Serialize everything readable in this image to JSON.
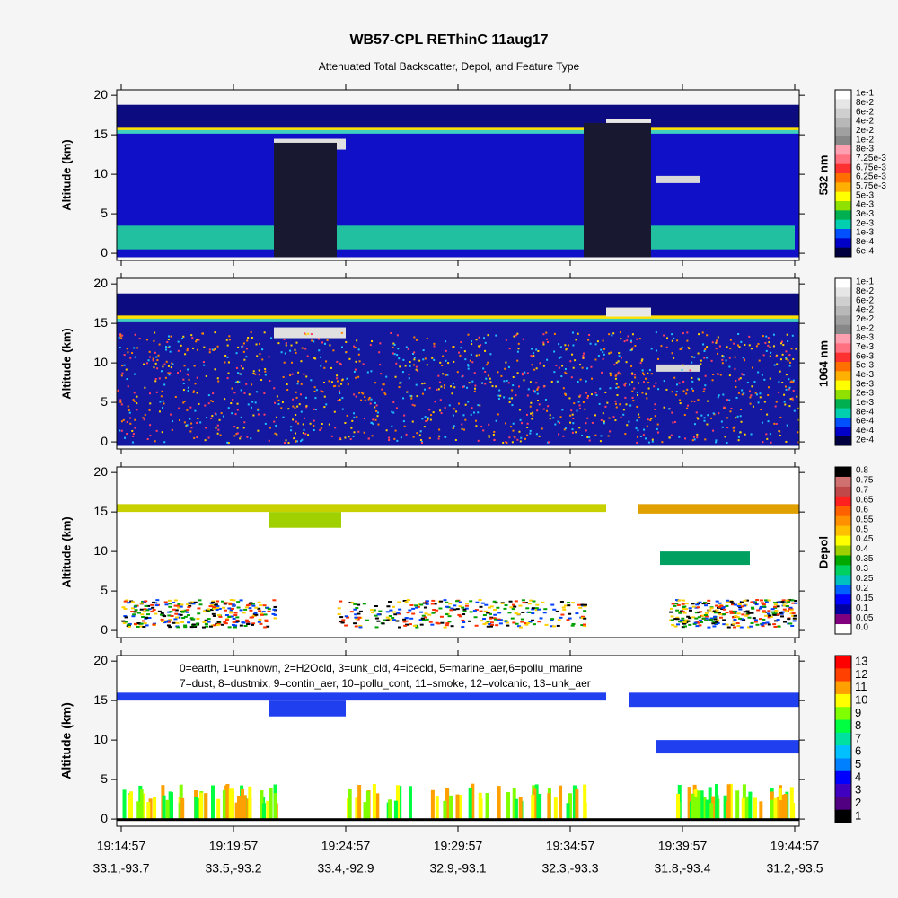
{
  "title": "WB57-CPL REThinC 11aug17",
  "subtitle": "Attenuated Total Backscatter, Depol, and Feature Type",
  "x_categories": [
    "19:14:57",
    "19:19:57",
    "19:24:57",
    "19:29:57",
    "19:34:57",
    "19:39:57",
    "19:44:57"
  ],
  "x_positions": [
    "33.1,-93.7",
    "33.5,-93.2",
    "33.4,-92.9",
    "32.9,-93.1",
    "32.3,-93.3",
    "31.8,-93.4",
    "31.2,-93.5"
  ],
  "chart_data": [
    {
      "type": "heatmap",
      "ylabel": "Altitude (km)",
      "ylim": [
        -0.9,
        20.7
      ],
      "yticks": [
        0,
        5,
        10,
        15,
        20
      ],
      "colorbar": {
        "label": "532 nm",
        "levels": [
          "1e-1",
          "8e-2",
          "6e-2",
          "4e-2",
          "2e-2",
          "1e-2",
          "8e-3",
          "7.25e-3",
          "6.75e-3",
          "6.25e-3",
          "5.75e-3",
          "5e-3",
          "4e-3",
          "3e-3",
          "2e-3",
          "1e-3",
          "8e-4",
          "6e-4"
        ],
        "colors": [
          "#ffffff",
          "#e6e6e6",
          "#cfcfcf",
          "#b8b8b8",
          "#a0a0a0",
          "#888888",
          "#ffa0b0",
          "#ff7080",
          "#ff3030",
          "#ff7000",
          "#ffb000",
          "#ffff00",
          "#90e000",
          "#00b050",
          "#00d0b0",
          "#0050ff",
          "#0000c8",
          "#000040"
        ]
      }
    },
    {
      "type": "heatmap",
      "ylabel": "Altitude (km)",
      "ylim": [
        -0.9,
        20.7
      ],
      "yticks": [
        0,
        5,
        10,
        15,
        20
      ],
      "colorbar": {
        "label": "1064 nm",
        "levels": [
          "1e-1",
          "8e-2",
          "6e-2",
          "4e-2",
          "2e-2",
          "1e-2",
          "8e-3",
          "7e-3",
          "6e-3",
          "5e-3",
          "4e-3",
          "3e-3",
          "2e-3",
          "1e-3",
          "8e-4",
          "6e-4",
          "4e-4",
          "2e-4"
        ],
        "colors": [
          "#ffffff",
          "#e6e6e6",
          "#cfcfcf",
          "#b8b8b8",
          "#a0a0a0",
          "#888888",
          "#ffa0b0",
          "#ff7080",
          "#ff3030",
          "#ff7000",
          "#ffb000",
          "#ffff00",
          "#90e000",
          "#00b050",
          "#00d0b0",
          "#0050ff",
          "#0000c8",
          "#000040"
        ]
      }
    },
    {
      "type": "heatmap",
      "ylabel": "Altitude (km)",
      "ylim": [
        -0.9,
        20.7
      ],
      "yticks": [
        0,
        5,
        10,
        15,
        20
      ],
      "colorbar": {
        "label": "Depol",
        "levels": [
          0.8,
          0.75,
          0.7,
          0.65,
          0.6,
          0.55,
          0.5,
          0.45,
          0.4,
          0.35,
          0.3,
          0.25,
          0.2,
          0.15,
          0.1,
          0.05,
          {
            "value": 0,
            "label": "0.0"
          }
        ],
        "colors": [
          "#000000",
          "#d07070",
          "#c04848",
          "#ff2020",
          "#ff6000",
          "#ff9000",
          "#ffc000",
          "#ffff00",
          "#a0d000",
          "#00a800",
          "#00d060",
          "#00c0c0",
          "#0060ff",
          "#0000ff",
          "#0000a0",
          "#800080",
          "#ffffff"
        ]
      }
    },
    {
      "type": "heatmap",
      "ylabel": "Altitude (km)",
      "ylim": [
        -0.9,
        20.7
      ],
      "yticks": [
        0,
        5,
        10,
        15,
        20
      ],
      "annotations": [
        "0=earth, 1=unknown, 2=H2Ocld, 3=unk_cld, 4=icecld, 5=marine_aer,6=pollu_marine",
        "7=dust, 8=dustmix, 9=contin_aer, 10=pollu_cont, 11=smoke, 12=volcanic, 13=unk_aer"
      ],
      "colorbar": {
        "label": null,
        "levels": [
          13,
          12,
          11,
          10,
          9,
          8,
          7,
          6,
          5,
          4,
          3,
          2,
          1
        ],
        "colors": [
          "#ff0000",
          "#ff4000",
          "#ffa000",
          "#ffff00",
          "#80ff00",
          "#00ff40",
          "#00e0a0",
          "#00c0ff",
          "#0080ff",
          "#0000ff",
          "#4000c0",
          "#500080",
          "#000000"
        ]
      }
    }
  ]
}
